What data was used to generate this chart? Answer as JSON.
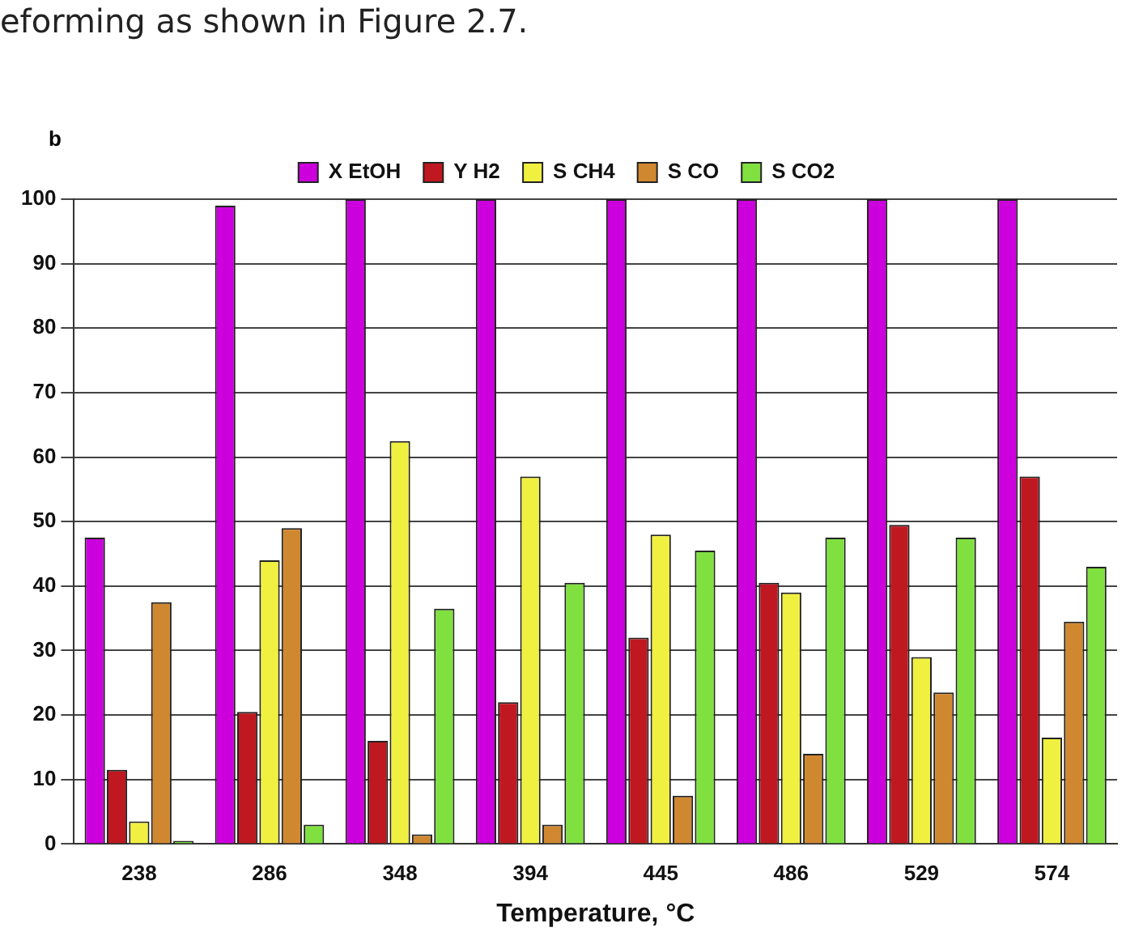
{
  "chart_data": {
    "type": "bar",
    "xlabel": "Temperature, °C",
    "annotations": [
      "eforming as shown in Figure 2.7.",
      "b"
    ],
    "categories": [
      "238",
      "286",
      "348",
      "394",
      "445",
      "486",
      "529",
      "574"
    ],
    "series": [
      {
        "name": "X EtOH",
        "color": "#cc00dd",
        "values": [
          47.5,
          99,
          100,
          100,
          100,
          100,
          100,
          100
        ]
      },
      {
        "name": "Y H2",
        "color": "#c01820",
        "values": [
          11.5,
          20.5,
          16,
          22,
          32,
          40.5,
          49.5,
          57
        ]
      },
      {
        "name": "S CH4",
        "color": "#f0f040",
        "values": [
          3.5,
          44,
          62.5,
          57,
          48,
          39,
          29,
          16.5
        ]
      },
      {
        "name": "S CO",
        "color": "#d08830",
        "values": [
          37.5,
          49,
          1.5,
          3,
          7.5,
          14,
          23.5,
          34.5
        ]
      },
      {
        "name": "S CO2",
        "color": "#80e040",
        "values": [
          0.5,
          3,
          36.5,
          40.5,
          45.5,
          47.5,
          47.5,
          43
        ]
      }
    ],
    "ylim": [
      0,
      100
    ],
    "yticks": [
      0,
      10,
      20,
      30,
      40,
      50,
      60,
      70,
      80,
      90,
      100
    ],
    "grid": "y",
    "legend": "top"
  }
}
